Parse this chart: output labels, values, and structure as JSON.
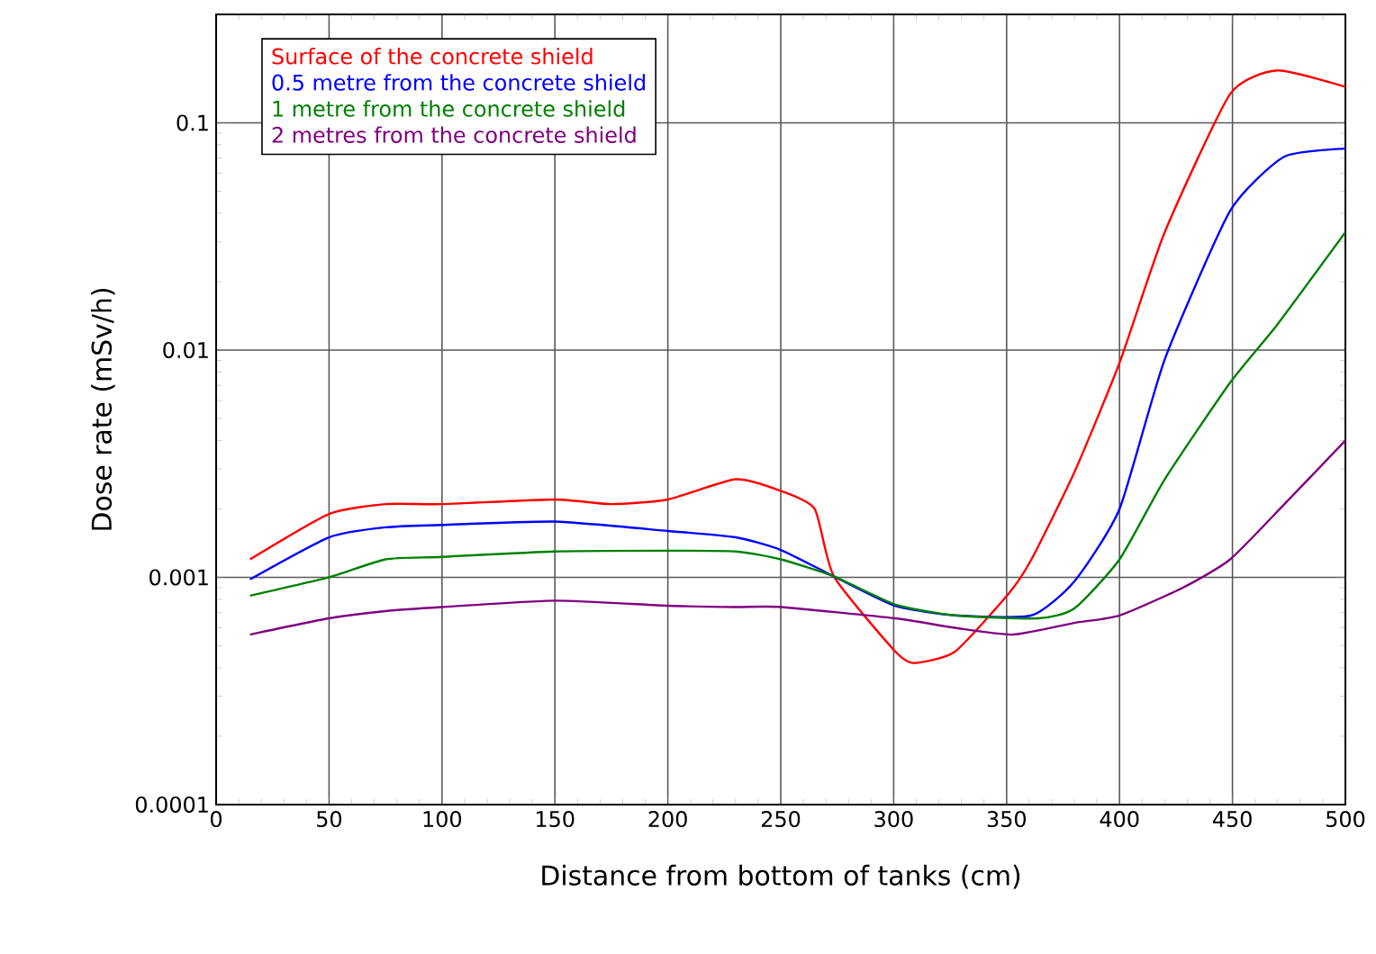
{
  "chart_data": {
    "type": "line",
    "xlabel": "Distance from bottom of tanks (cm)",
    "ylabel": "Dose rate (mSv/h)",
    "log": "y",
    "grid": true,
    "legend": "top left",
    "line_style": "solid",
    "marker": "none",
    "xlim": [
      0,
      500
    ],
    "xticks": [
      0,
      50,
      100,
      150,
      200,
      250,
      300,
      350,
      400,
      450,
      500
    ],
    "ylim": [
      0.0001,
      0.3
    ],
    "yticks": [
      0.0001,
      0.001,
      0.01,
      0.1
    ],
    "series": [
      {
        "name": "Surface of the concrete shield",
        "color": "#ff0000",
        "x": [
          15,
          50,
          75,
          100,
          150,
          175,
          200,
          230,
          250,
          265,
          273.5,
          300,
          308.6,
          327,
          351,
          361,
          380,
          400,
          420,
          449,
          470,
          500
        ],
        "values": [
          0.0012,
          0.0019,
          0.0021,
          0.0021,
          0.0022,
          0.0021,
          0.0022,
          0.0027,
          0.0024,
          0.002,
          0.00101,
          0.00048,
          0.00042,
          0.00047,
          0.00085,
          0.0012,
          0.0029,
          0.0088,
          0.033,
          0.134,
          0.17,
          0.144
        ]
      },
      {
        "name": "0.5 metre from the concrete shield",
        "color": "#0000ff",
        "x": [
          15,
          50,
          75,
          100,
          150,
          200,
          230,
          250,
          273.5,
          300.6,
          327,
          361,
          380,
          400,
          420,
          449,
          473,
          500
        ],
        "values": [
          0.00098,
          0.0015,
          0.00166,
          0.0017,
          0.00176,
          0.0016,
          0.0015,
          0.00132,
          0.00101,
          0.00075,
          0.00068,
          0.00068,
          0.00096,
          0.002,
          0.0091,
          0.041,
          0.071,
          0.077
        ]
      },
      {
        "name": "1 metre from the concrete shield",
        "color": "#008000",
        "x": [
          15,
          50,
          75,
          100,
          150,
          200,
          230,
          250,
          273.5,
          300.6,
          327,
          364,
          380,
          400,
          420,
          449,
          470,
          500
        ],
        "values": [
          0.00083,
          0.001,
          0.0012,
          0.00123,
          0.0013,
          0.00131,
          0.0013,
          0.0012,
          0.00101,
          0.00076,
          0.00068,
          0.00066,
          0.00073,
          0.0012,
          0.0027,
          0.0072,
          0.013,
          0.033
        ]
      },
      {
        "name": "2 metres from the concrete shield",
        "color": "#800080",
        "x": [
          15,
          50,
          75,
          100,
          150,
          200,
          230,
          250,
          300.6,
          327,
          353,
          380,
          400,
          428,
          449,
          473,
          500
        ],
        "values": [
          0.00056,
          0.00066,
          0.00071,
          0.00074,
          0.00079,
          0.00075,
          0.00074,
          0.00074,
          0.00066,
          0.0006,
          0.00056,
          0.00063,
          0.00068,
          0.0009,
          0.0012,
          0.0021,
          0.004
        ]
      }
    ]
  }
}
